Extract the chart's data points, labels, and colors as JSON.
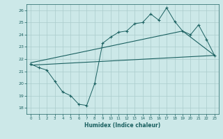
{
  "xlabel": "Humidex (Indice chaleur)",
  "ylabel": "",
  "xlim": [
    -0.5,
    23.5
  ],
  "ylim": [
    17.5,
    26.5
  ],
  "yticks": [
    18,
    19,
    20,
    21,
    22,
    23,
    24,
    25,
    26
  ],
  "xticks": [
    0,
    1,
    2,
    3,
    4,
    5,
    6,
    7,
    8,
    9,
    10,
    11,
    12,
    13,
    14,
    15,
    16,
    17,
    18,
    19,
    20,
    21,
    22,
    23
  ],
  "bg_color": "#cce8e8",
  "grid_color": "#aacccc",
  "line_color": "#1a6060",
  "line1_x": [
    0,
    1,
    2,
    3,
    4,
    5,
    6,
    7,
    8,
    9,
    10,
    11,
    12,
    13,
    14,
    15,
    16,
    17,
    18,
    19,
    20,
    21,
    22,
    23
  ],
  "line1_y": [
    21.6,
    21.3,
    21.1,
    20.2,
    19.3,
    19.0,
    18.3,
    18.2,
    20.0,
    23.3,
    23.8,
    24.2,
    24.3,
    24.9,
    25.0,
    25.7,
    25.2,
    26.2,
    25.1,
    24.3,
    24.0,
    24.8,
    23.6,
    22.3
  ],
  "line2_x": [
    0,
    23
  ],
  "line2_y": [
    21.5,
    22.3
  ],
  "line3_x": [
    0,
    19,
    23
  ],
  "line3_y": [
    21.7,
    24.3,
    22.3
  ]
}
